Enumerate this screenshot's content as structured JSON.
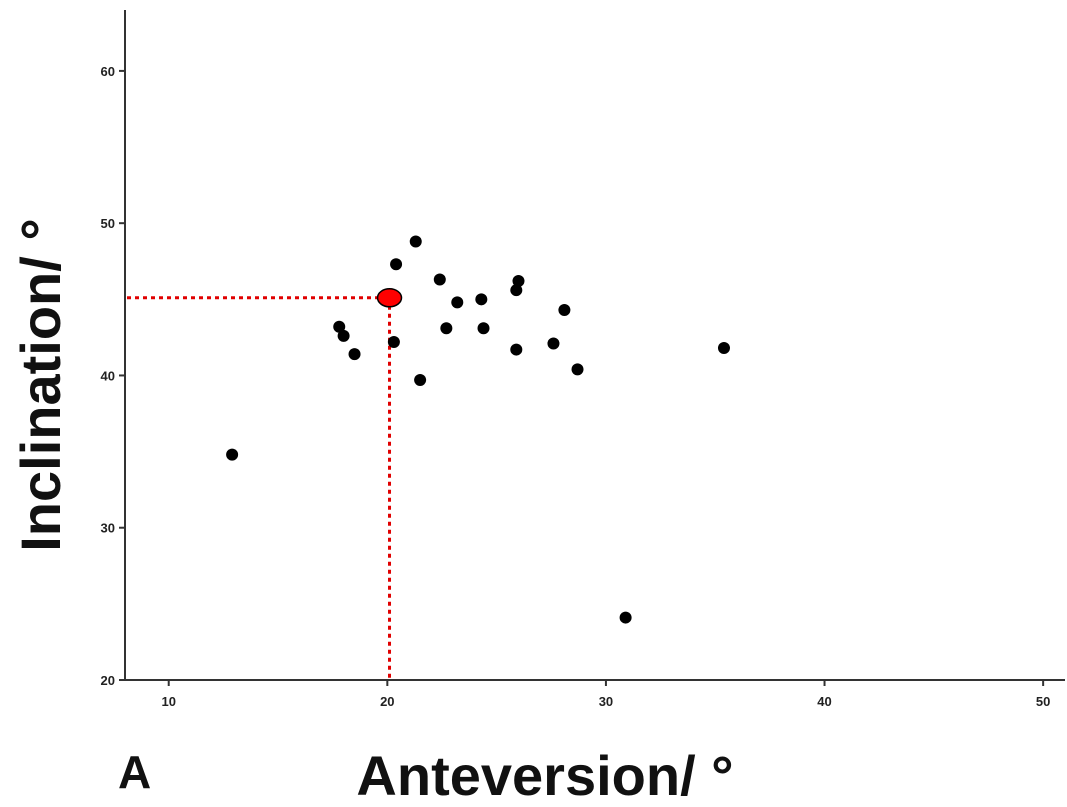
{
  "chart_data": {
    "type": "scatter",
    "title": "",
    "panel_label": "A",
    "xlabel": "Anteversion/ °",
    "ylabel": "Inclination/ °",
    "xlim": [
      8,
      51
    ],
    "ylim": [
      20,
      64
    ],
    "xticks": [
      10,
      20,
      30,
      40,
      50
    ],
    "yticks": [
      20,
      30,
      40,
      50,
      60
    ],
    "grid": false,
    "point_color": "#000000",
    "points": [
      {
        "x": 12.9,
        "y": 34.8
      },
      {
        "x": 17.8,
        "y": 43.2
      },
      {
        "x": 18.0,
        "y": 42.6
      },
      {
        "x": 18.5,
        "y": 41.4
      },
      {
        "x": 20.3,
        "y": 42.2
      },
      {
        "x": 20.4,
        "y": 47.3
      },
      {
        "x": 21.3,
        "y": 48.8
      },
      {
        "x": 21.5,
        "y": 39.7
      },
      {
        "x": 22.4,
        "y": 46.3
      },
      {
        "x": 22.7,
        "y": 43.1
      },
      {
        "x": 23.2,
        "y": 44.8
      },
      {
        "x": 24.3,
        "y": 45.0
      },
      {
        "x": 24.4,
        "y": 43.1
      },
      {
        "x": 25.9,
        "y": 45.6
      },
      {
        "x": 26.0,
        "y": 46.2
      },
      {
        "x": 25.9,
        "y": 41.7
      },
      {
        "x": 27.6,
        "y": 42.1
      },
      {
        "x": 28.1,
        "y": 44.3
      },
      {
        "x": 28.7,
        "y": 40.4
      },
      {
        "x": 30.9,
        "y": 24.1
      },
      {
        "x": 35.4,
        "y": 41.8
      }
    ],
    "highlight": {
      "x": 20.1,
      "y": 45.1,
      "color": "#ff0000",
      "guide_color": "#e00000"
    }
  }
}
